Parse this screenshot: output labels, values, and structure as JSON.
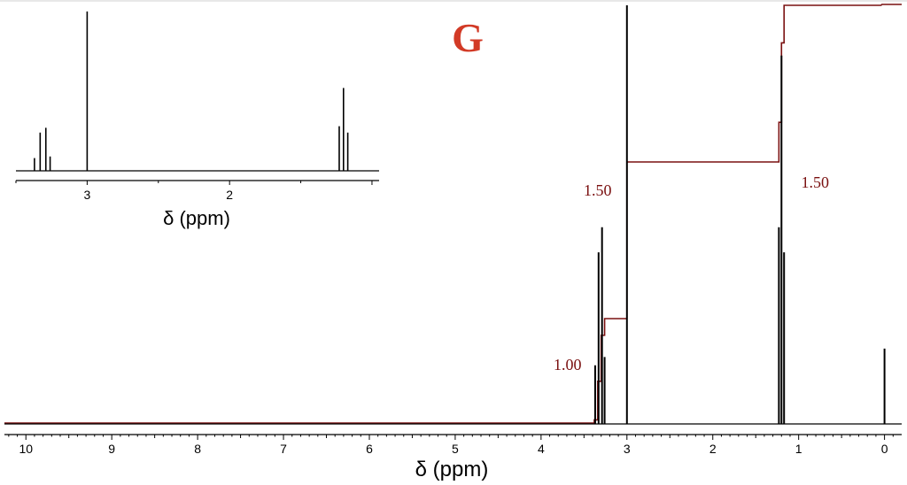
{
  "title": "G",
  "colors": {
    "spectrum": "#000000",
    "integral": "#7a1010",
    "title": "#d23a26"
  },
  "chart_data": [
    {
      "type": "line",
      "name": "main-spectrum",
      "xlabel": "δ (ppm)",
      "xlim": [
        10.25,
        -0.2
      ],
      "x_reversed": true,
      "xticks": [
        "10",
        "9",
        "8",
        "7",
        "6",
        "5",
        "4",
        "3",
        "2",
        "1",
        "0"
      ],
      "peaks": [
        {
          "ppm": 3.37,
          "height": 0.14
        },
        {
          "ppm": 3.33,
          "height": 0.41
        },
        {
          "ppm": 3.29,
          "height": 0.47
        },
        {
          "ppm": 3.26,
          "height": 0.16
        },
        {
          "ppm": 3.0,
          "height": 1.0
        },
        {
          "ppm": 1.23,
          "height": 0.47
        },
        {
          "ppm": 1.2,
          "height": 0.88
        },
        {
          "ppm": 1.17,
          "height": 0.41
        },
        {
          "ppm": 0.0,
          "height": 0.18
        }
      ],
      "integral_labels": [
        {
          "text": "1.00",
          "ppm": 3.31
        },
        {
          "text": "1.50",
          "ppm": 3.0
        },
        {
          "text": "1.50",
          "ppm": 1.2
        }
      ]
    },
    {
      "type": "line",
      "name": "inset-spectrum",
      "xlabel": "δ (ppm)",
      "xlim": [
        3.5,
        0.95
      ],
      "x_reversed": true,
      "xticks": [
        "3",
        "2"
      ],
      "peaks": [
        {
          "ppm": 3.37,
          "height": 0.08
        },
        {
          "ppm": 3.33,
          "height": 0.24
        },
        {
          "ppm": 3.29,
          "height": 0.27
        },
        {
          "ppm": 3.26,
          "height": 0.09
        },
        {
          "ppm": 3.0,
          "height": 1.0
        },
        {
          "ppm": 1.23,
          "height": 0.28
        },
        {
          "ppm": 1.2,
          "height": 0.52
        },
        {
          "ppm": 1.17,
          "height": 0.24
        }
      ]
    }
  ]
}
